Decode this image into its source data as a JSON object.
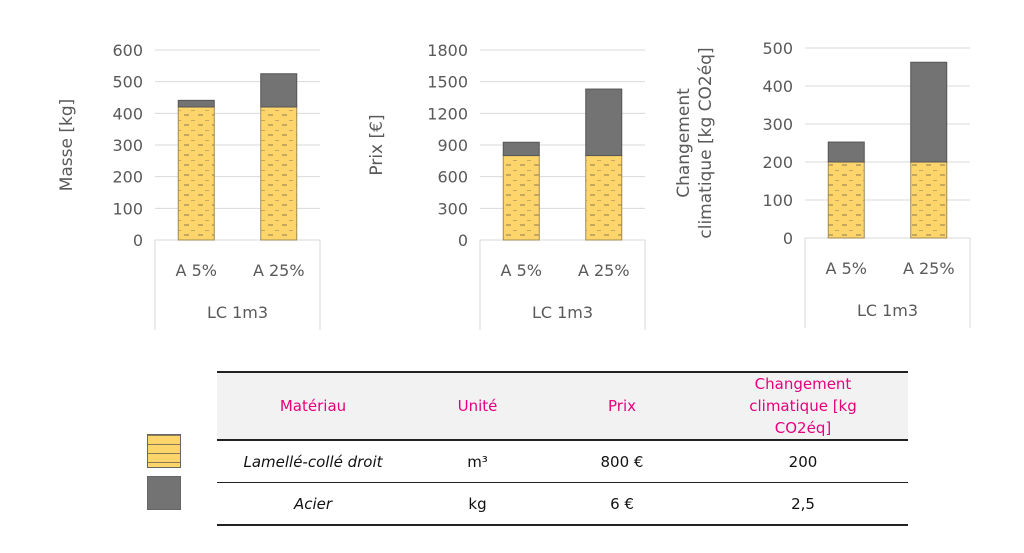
{
  "chart_data": [
    {
      "type": "bar",
      "stacked": true,
      "ylabel": "Masse [kg]",
      "ylim": [
        0,
        600
      ],
      "yticks": [
        0,
        100,
        200,
        300,
        400,
        500,
        600
      ],
      "categories": [
        "A 5%",
        "A 25%"
      ],
      "group_label": "LC 1m3",
      "series": [
        {
          "name": "Lamellé-collé droit",
          "values": [
            420,
            420
          ]
        },
        {
          "name": "Acier",
          "values": [
            21,
            105
          ]
        }
      ],
      "grid": true
    },
    {
      "type": "bar",
      "stacked": true,
      "ylabel": "Prix [€]",
      "ylim": [
        0,
        1800
      ],
      "yticks": [
        0,
        300,
        600,
        900,
        1200,
        1500,
        1800
      ],
      "categories": [
        "A 5%",
        "A 25%"
      ],
      "group_label": "LC 1m3",
      "series": [
        {
          "name": "Lamellé-collé droit",
          "values": [
            800,
            800
          ]
        },
        {
          "name": "Acier",
          "values": [
            126,
            630
          ]
        }
      ],
      "grid": true
    },
    {
      "type": "bar",
      "stacked": true,
      "ylabel": "Changement climatique [kg CO2éq]",
      "ylabel_lines": [
        "Changement",
        "climatique [kg CO2éq]"
      ],
      "ylim": [
        0,
        500
      ],
      "yticks": [
        0,
        100,
        200,
        300,
        400,
        500
      ],
      "categories": [
        "A 5%",
        "A 25%"
      ],
      "group_label": "LC 1m3",
      "series": [
        {
          "name": "Lamellé-collé droit",
          "values": [
            200,
            200
          ]
        },
        {
          "name": "Acier",
          "values": [
            52.5,
            262.5
          ]
        }
      ],
      "grid": true
    }
  ],
  "colors": {
    "wood": "#fdd56a",
    "steel": "#737373",
    "header_text": "#e6007e"
  },
  "table": {
    "headers": [
      "Matériau",
      "Unité",
      "Prix",
      "Changement climatique [kg CO2éq]"
    ],
    "rows": [
      [
        "Lamellé-collé droit",
        "m³",
        "800 €",
        "200"
      ],
      [
        "Acier",
        "kg",
        "6 €",
        "2,5"
      ]
    ]
  }
}
